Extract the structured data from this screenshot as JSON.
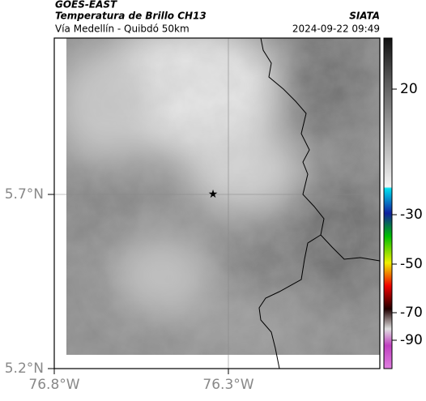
{
  "header": {
    "source": "GOES-EAST",
    "title": "Temperatura de Brillo CH13",
    "subtitle": "Vía Medellín - Quibdó 50km",
    "agency": "SIATA",
    "datetime": "2024-09-22 09:49"
  },
  "map": {
    "lat_labels": [
      "5.7°N",
      "5.2°N"
    ],
    "lon_labels": [
      "76.8°W",
      "76.3°W"
    ]
  },
  "colorbar": {
    "ticks": [
      "20",
      "-30",
      "-50",
      "-70",
      "-90"
    ]
  }
}
